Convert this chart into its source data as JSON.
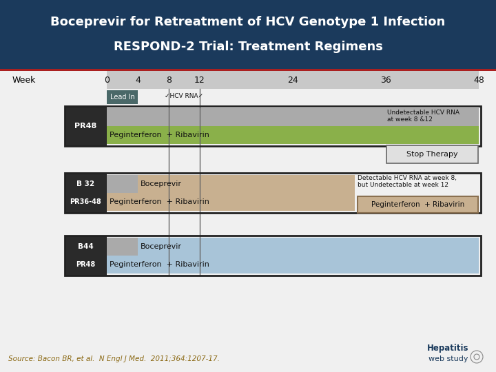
{
  "title_line1": "Boceprevir for Retreatment of HCV Genotype 1 Infection",
  "title_line2": "RESPOND-2 Trial: Treatment Regimens",
  "title_bg": "#1b3a5c",
  "title_color": "#ffffff",
  "bg_color": "#f0f0f0",
  "week_label": "Week",
  "week_ticks": [
    0,
    4,
    8,
    12,
    24,
    36,
    48
  ],
  "timeline_bg": "#c8c8c8",
  "lead_in_color": "#4a6868",
  "lead_in_label": "Lead In",
  "hcv_rna_label": "HCV RNA",
  "arrow_weeks": [
    8,
    12
  ],
  "source_text": "Source: Bacon BR, et al.  N Engl J Med.  2011;364:1207-17.",
  "source_color": "#8B6914",
  "red_line_color": "#aa2020",
  "dark_label_bg": "#2a2a2a",
  "border_color": "#222222",
  "grey_bar": "#aaaaaa",
  "green_bar": "#8ab04a",
  "tan_bar": "#c8b090",
  "blue_bar": "#a8c4d8",
  "stop_box_bg": "#e0e0e0",
  "stop_box_edge": "#666666"
}
